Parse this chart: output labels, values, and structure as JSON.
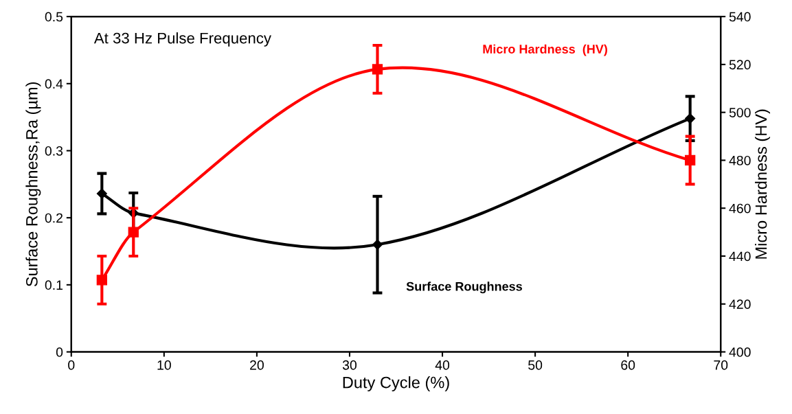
{
  "chart_data": {
    "type": "line",
    "xlabel": "Duty Cycle (%)",
    "ylabel": "Surface Roughness,Ra (µm)",
    "y2label": "Micro Hardness (HV)",
    "annotations": [
      "At 33 Hz Pulse Frequency"
    ],
    "xlim": [
      0,
      70
    ],
    "xticks": [
      0,
      10,
      20,
      30,
      40,
      50,
      60,
      70
    ],
    "ylim": [
      0,
      0.5
    ],
    "yticks": [
      0,
      0.1,
      0.2,
      0.3,
      0.4,
      0.5
    ],
    "y2lim": [
      400,
      540
    ],
    "y2ticks": [
      400,
      420,
      440,
      460,
      480,
      500,
      520,
      540
    ],
    "grid": false,
    "legend": false,
    "line_style": "solid",
    "series": [
      {
        "name": "Surface Roughness",
        "color": "#000000",
        "marker": "diamond",
        "x": [
          3.3,
          6.7,
          33,
          66.7
        ],
        "values": [
          0.236,
          0.207,
          0.16,
          0.348
        ],
        "errors": [
          0.03,
          0.03,
          0.072,
          0.033
        ]
      },
      {
        "name": "Micro Hardness  (HV)",
        "color": "#ff0000",
        "marker": "square",
        "axis": "y2",
        "x": [
          3.3,
          6.7,
          33,
          66.7
        ],
        "values": [
          430,
          450,
          518,
          480
        ],
        "errors": [
          10,
          10,
          10,
          10
        ]
      }
    ]
  }
}
